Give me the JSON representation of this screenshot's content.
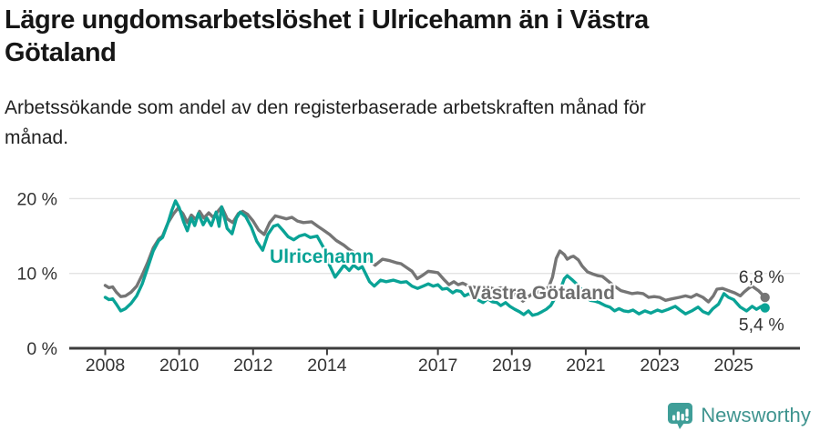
{
  "header": {
    "title": "Lägre ungdomsarbetslöshet i Ulricehamn än i Västra Götaland",
    "subtitle": "Arbetssökande som andel av den registerbaserade arbetskraften månad för månad."
  },
  "footer": {
    "brand": "Newsworthy"
  },
  "colors": {
    "ulricehamn": "#0aa396",
    "vastra_gotaland": "#757575",
    "grid": "#e3e3e3",
    "axis": "#3d3d3d",
    "tick_text": "#333333",
    "end_label_text": "#333333",
    "logo_icon": "#3f9e98",
    "logo_text": "#3f948f"
  },
  "chart_data": {
    "type": "line",
    "title": "Lägre ungdomsarbetslöshet i Ulricehamn än i Västra Götaland",
    "xlabel": "",
    "ylabel": "",
    "unit": "%",
    "grid": true,
    "legend_position": "inline-labels",
    "xlim": [
      2007.0,
      2026.8
    ],
    "ylim": [
      0,
      21.8
    ],
    "x_ticks": [
      {
        "year": 2008,
        "label": "2008"
      },
      {
        "year": 2010,
        "label": "2010"
      },
      {
        "year": 2012,
        "label": "2012"
      },
      {
        "year": 2014,
        "label": "2014"
      },
      {
        "year": 2017,
        "label": "2017"
      },
      {
        "year": 2019,
        "label": "2019"
      },
      {
        "year": 2021,
        "label": "2021"
      },
      {
        "year": 2023,
        "label": "2023"
      },
      {
        "year": 2025,
        "label": "2025"
      }
    ],
    "y_ticks": [
      {
        "value": 0,
        "label": "0 %"
      },
      {
        "value": 10,
        "label": "10 %"
      },
      {
        "value": 20,
        "label": "20 %"
      }
    ],
    "series_labels": [
      {
        "text": "Ulricehamn",
        "year": 2012.45,
        "value": 12.3,
        "color": "#0aa396"
      },
      {
        "text": "Västra Götaland",
        "year": 2017.82,
        "value": 7.4,
        "color": "#6e6e6e"
      }
    ],
    "series": [
      {
        "name": "Västra Götaland",
        "color": "#757575",
        "end_label": "6,8 %",
        "end_label_position": "above",
        "points": [
          [
            2008.0,
            8.4
          ],
          [
            2008.1,
            8.1
          ],
          [
            2008.2,
            8.2
          ],
          [
            2008.3,
            7.5
          ],
          [
            2008.42,
            6.9
          ],
          [
            2008.55,
            7.0
          ],
          [
            2008.7,
            7.5
          ],
          [
            2008.85,
            8.3
          ],
          [
            2009.0,
            9.8
          ],
          [
            2009.15,
            11.5
          ],
          [
            2009.3,
            13.4
          ],
          [
            2009.45,
            14.6
          ],
          [
            2009.55,
            15.0
          ],
          [
            2009.7,
            16.8
          ],
          [
            2009.85,
            18.0
          ],
          [
            2009.97,
            18.7
          ],
          [
            2010.1,
            18.0
          ],
          [
            2010.22,
            16.8
          ],
          [
            2010.33,
            17.8
          ],
          [
            2010.45,
            17.2
          ],
          [
            2010.55,
            18.3
          ],
          [
            2010.67,
            17.4
          ],
          [
            2010.8,
            18.1
          ],
          [
            2010.92,
            17.5
          ],
          [
            2011.05,
            18.3
          ],
          [
            2011.15,
            18.9
          ],
          [
            2011.3,
            17.3
          ],
          [
            2011.45,
            16.8
          ],
          [
            2011.6,
            18.0
          ],
          [
            2011.72,
            18.3
          ],
          [
            2011.85,
            17.9
          ],
          [
            2012.0,
            17.0
          ],
          [
            2012.15,
            15.8
          ],
          [
            2012.3,
            15.2
          ],
          [
            2012.45,
            16.8
          ],
          [
            2012.6,
            17.7
          ],
          [
            2012.75,
            17.5
          ],
          [
            2012.9,
            17.3
          ],
          [
            2013.05,
            17.5
          ],
          [
            2013.2,
            17.0
          ],
          [
            2013.36,
            16.8
          ],
          [
            2013.58,
            16.9
          ],
          [
            2013.75,
            16.3
          ],
          [
            2013.9,
            15.8
          ],
          [
            2014.07,
            15.2
          ],
          [
            2014.25,
            14.4
          ],
          [
            2014.45,
            13.8
          ],
          [
            2014.6,
            13.2
          ],
          [
            2014.8,
            12.6
          ],
          [
            2015.0,
            12.1
          ],
          [
            2015.18,
            11.7
          ],
          [
            2015.3,
            11.1
          ],
          [
            2015.5,
            11.9
          ],
          [
            2015.7,
            11.7
          ],
          [
            2015.9,
            11.4
          ],
          [
            2016.0,
            11.3
          ],
          [
            2016.15,
            10.8
          ],
          [
            2016.3,
            10.3
          ],
          [
            2016.44,
            9.3
          ],
          [
            2016.6,
            9.8
          ],
          [
            2016.74,
            10.3
          ],
          [
            2016.87,
            10.2
          ],
          [
            2017.0,
            10.1
          ],
          [
            2017.16,
            9.2
          ],
          [
            2017.3,
            8.5
          ],
          [
            2017.43,
            8.9
          ],
          [
            2017.55,
            8.5
          ],
          [
            2017.67,
            8.7
          ],
          [
            2017.8,
            8.4
          ],
          [
            2017.95,
            8.2
          ],
          [
            2018.1,
            8.0
          ],
          [
            2018.25,
            8.3
          ],
          [
            2018.4,
            8.1
          ],
          [
            2018.55,
            7.9
          ],
          [
            2018.7,
            8.1
          ],
          [
            2018.85,
            7.8
          ],
          [
            2019.0,
            7.4
          ],
          [
            2019.15,
            7.0
          ],
          [
            2019.3,
            6.3
          ],
          [
            2019.45,
            6.9
          ],
          [
            2019.56,
            7.3
          ],
          [
            2019.7,
            7.5
          ],
          [
            2019.85,
            7.7
          ],
          [
            2020.0,
            8.2
          ],
          [
            2020.1,
            9.5
          ],
          [
            2020.2,
            12.0
          ],
          [
            2020.3,
            13.0
          ],
          [
            2020.42,
            12.5
          ],
          [
            2020.5,
            11.9
          ],
          [
            2020.6,
            12.2
          ],
          [
            2020.67,
            12.3
          ],
          [
            2020.8,
            11.8
          ],
          [
            2020.9,
            11.0
          ],
          [
            2021.05,
            10.2
          ],
          [
            2021.2,
            9.9
          ],
          [
            2021.33,
            9.7
          ],
          [
            2021.45,
            9.6
          ],
          [
            2021.6,
            9.0
          ],
          [
            2021.75,
            8.4
          ],
          [
            2021.95,
            7.7
          ],
          [
            2022.1,
            7.5
          ],
          [
            2022.25,
            7.3
          ],
          [
            2022.4,
            7.4
          ],
          [
            2022.55,
            7.3
          ],
          [
            2022.7,
            6.8
          ],
          [
            2022.85,
            6.9
          ],
          [
            2023.0,
            6.8
          ],
          [
            2023.16,
            6.4
          ],
          [
            2023.33,
            6.6
          ],
          [
            2023.53,
            6.8
          ],
          [
            2023.7,
            7.0
          ],
          [
            2023.85,
            6.8
          ],
          [
            2024.0,
            7.2
          ],
          [
            2024.17,
            6.8
          ],
          [
            2024.32,
            6.2
          ],
          [
            2024.45,
            7.0
          ],
          [
            2024.55,
            7.9
          ],
          [
            2024.7,
            8.0
          ],
          [
            2024.86,
            7.7
          ],
          [
            2025.03,
            7.4
          ],
          [
            2025.18,
            7.0
          ],
          [
            2025.28,
            7.5
          ],
          [
            2025.4,
            8.0
          ],
          [
            2025.5,
            8.3
          ],
          [
            2025.67,
            7.7
          ],
          [
            2025.85,
            6.8
          ]
        ]
      },
      {
        "name": "Ulricehamn",
        "color": "#0aa396",
        "end_label": "5,4 %",
        "end_label_position": "below",
        "points": [
          [
            2008.0,
            6.8
          ],
          [
            2008.1,
            6.5
          ],
          [
            2008.2,
            6.6
          ],
          [
            2008.3,
            5.9
          ],
          [
            2008.42,
            5.0
          ],
          [
            2008.55,
            5.3
          ],
          [
            2008.7,
            6.0
          ],
          [
            2008.85,
            7.0
          ],
          [
            2009.0,
            8.6
          ],
          [
            2009.15,
            10.8
          ],
          [
            2009.3,
            13.0
          ],
          [
            2009.45,
            14.4
          ],
          [
            2009.55,
            14.8
          ],
          [
            2009.7,
            16.8
          ],
          [
            2009.8,
            18.4
          ],
          [
            2009.9,
            19.7
          ],
          [
            2010.0,
            18.8
          ],
          [
            2010.12,
            16.9
          ],
          [
            2010.22,
            15.7
          ],
          [
            2010.33,
            17.4
          ],
          [
            2010.42,
            16.4
          ],
          [
            2010.52,
            18.0
          ],
          [
            2010.65,
            16.5
          ],
          [
            2010.75,
            17.4
          ],
          [
            2010.87,
            16.4
          ],
          [
            2011.0,
            18.2
          ],
          [
            2011.08,
            16.3
          ],
          [
            2011.15,
            18.9
          ],
          [
            2011.3,
            16.0
          ],
          [
            2011.43,
            15.3
          ],
          [
            2011.55,
            17.4
          ],
          [
            2011.65,
            18.2
          ],
          [
            2011.8,
            17.6
          ],
          [
            2011.95,
            16.2
          ],
          [
            2012.1,
            14.3
          ],
          [
            2012.26,
            13.1
          ],
          [
            2012.4,
            15.2
          ],
          [
            2012.55,
            16.3
          ],
          [
            2012.67,
            16.5
          ],
          [
            2012.8,
            15.8
          ],
          [
            2012.95,
            14.9
          ],
          [
            2013.1,
            14.5
          ],
          [
            2013.25,
            15.0
          ],
          [
            2013.4,
            15.2
          ],
          [
            2013.55,
            14.8
          ],
          [
            2013.73,
            15.0
          ],
          [
            2013.9,
            13.5
          ],
          [
            2014.05,
            11.3
          ],
          [
            2014.22,
            9.5
          ],
          [
            2014.46,
            11.1
          ],
          [
            2014.6,
            10.4
          ],
          [
            2014.72,
            11.1
          ],
          [
            2014.85,
            10.6
          ],
          [
            2014.95,
            10.9
          ],
          [
            2015.15,
            8.9
          ],
          [
            2015.28,
            8.3
          ],
          [
            2015.45,
            9.1
          ],
          [
            2015.6,
            8.9
          ],
          [
            2015.8,
            9.1
          ],
          [
            2016.0,
            8.8
          ],
          [
            2016.15,
            8.9
          ],
          [
            2016.3,
            8.3
          ],
          [
            2016.45,
            8.0
          ],
          [
            2016.6,
            8.3
          ],
          [
            2016.74,
            8.6
          ],
          [
            2016.87,
            8.3
          ],
          [
            2017.0,
            8.5
          ],
          [
            2017.12,
            7.9
          ],
          [
            2017.25,
            8.0
          ],
          [
            2017.4,
            7.4
          ],
          [
            2017.5,
            7.7
          ],
          [
            2017.62,
            7.6
          ],
          [
            2017.72,
            7.0
          ],
          [
            2017.85,
            7.3
          ],
          [
            2018.0,
            6.7
          ],
          [
            2018.1,
            6.4
          ],
          [
            2018.22,
            6.1
          ],
          [
            2018.35,
            6.6
          ],
          [
            2018.47,
            6.2
          ],
          [
            2018.6,
            6.1
          ],
          [
            2018.7,
            5.7
          ],
          [
            2018.83,
            6.1
          ],
          [
            2018.95,
            5.6
          ],
          [
            2019.08,
            5.2
          ],
          [
            2019.2,
            4.9
          ],
          [
            2019.32,
            4.5
          ],
          [
            2019.45,
            5.0
          ],
          [
            2019.56,
            4.4
          ],
          [
            2019.7,
            4.6
          ],
          [
            2019.82,
            4.9
          ],
          [
            2019.93,
            5.2
          ],
          [
            2020.05,
            5.7
          ],
          [
            2020.17,
            6.7
          ],
          [
            2020.3,
            7.7
          ],
          [
            2020.42,
            9.3
          ],
          [
            2020.5,
            9.7
          ],
          [
            2020.62,
            9.2
          ],
          [
            2020.75,
            8.6
          ],
          [
            2020.88,
            7.9
          ],
          [
            2021.0,
            7.0
          ],
          [
            2021.12,
            6.4
          ],
          [
            2021.25,
            6.3
          ],
          [
            2021.37,
            6.1
          ],
          [
            2021.53,
            5.7
          ],
          [
            2021.65,
            5.5
          ],
          [
            2021.78,
            5.0
          ],
          [
            2021.9,
            5.3
          ],
          [
            2022.03,
            5.0
          ],
          [
            2022.15,
            4.9
          ],
          [
            2022.28,
            5.1
          ],
          [
            2022.44,
            4.6
          ],
          [
            2022.6,
            5.0
          ],
          [
            2022.76,
            4.7
          ],
          [
            2022.94,
            5.1
          ],
          [
            2023.06,
            4.9
          ],
          [
            2023.23,
            5.2
          ],
          [
            2023.42,
            5.6
          ],
          [
            2023.55,
            5.1
          ],
          [
            2023.7,
            4.6
          ],
          [
            2023.87,
            5.0
          ],
          [
            2024.04,
            5.5
          ],
          [
            2024.17,
            4.9
          ],
          [
            2024.32,
            4.6
          ],
          [
            2024.44,
            5.3
          ],
          [
            2024.59,
            5.9
          ],
          [
            2024.74,
            7.3
          ],
          [
            2024.86,
            6.8
          ],
          [
            2025.0,
            6.5
          ],
          [
            2025.18,
            5.5
          ],
          [
            2025.35,
            5.0
          ],
          [
            2025.5,
            5.6
          ],
          [
            2025.62,
            5.2
          ],
          [
            2025.75,
            5.6
          ],
          [
            2025.85,
            5.4
          ]
        ]
      }
    ]
  }
}
